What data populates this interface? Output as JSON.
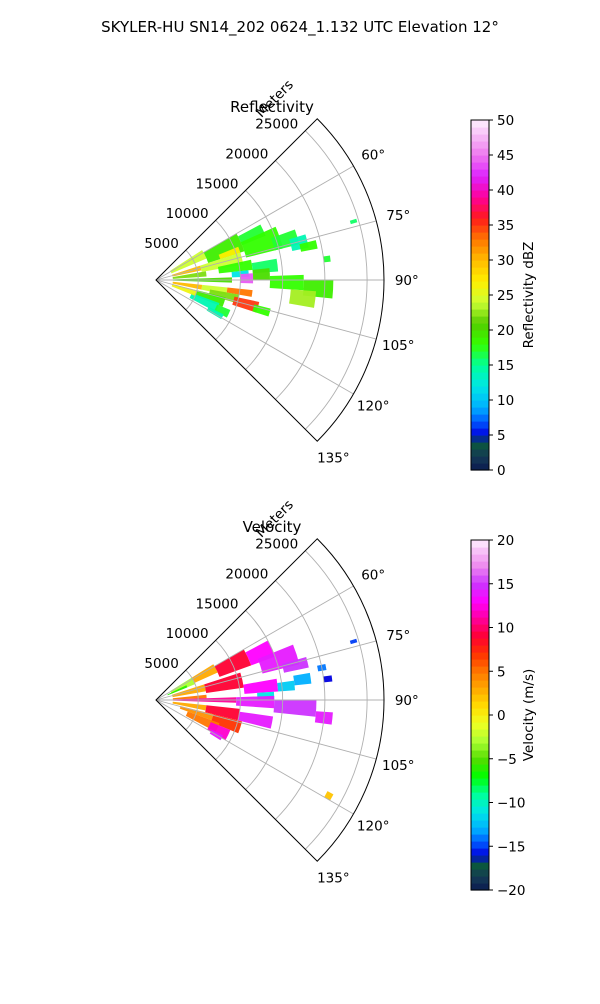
{
  "figure": {
    "suptitle": "SKYLER-HU  SN14_202  0624_1.132 UTC Elevation 12°"
  },
  "chart_data": [
    {
      "type": "heatmap",
      "subtype": "polar-sector",
      "title": "Reflectivity",
      "radial_axis_label": "Meters",
      "radial_range": [
        0,
        27000
      ],
      "radial_ticks": [
        5000,
        10000,
        15000,
        20000,
        25000
      ],
      "radial_tick_labels": [
        "5000",
        "10000",
        "15000",
        "20000",
        "25000"
      ],
      "azimuth_range_deg": [
        45,
        135
      ],
      "azimuth_ticks_deg": [
        60,
        75,
        90,
        105,
        120,
        135
      ],
      "azimuth_tick_labels": [
        "60°",
        "75°",
        "90°",
        "105°",
        "120°",
        "135°"
      ],
      "grid": true,
      "colorbar": {
        "label": "Reflectivity dBZ",
        "range": [
          0,
          50
        ],
        "ticks": [
          0,
          5,
          10,
          15,
          20,
          25,
          30,
          35,
          40,
          45,
          50
        ],
        "tick_labels": [
          "0",
          "5",
          "10",
          "15",
          "20",
          "25",
          "30",
          "35",
          "40",
          "45",
          "50"
        ],
        "color_stops": [
          [
            0,
            "#0b1a4f"
          ],
          [
            2,
            "#143a55"
          ],
          [
            4,
            "#0a5a3a"
          ],
          [
            5,
            "#0000e0"
          ],
          [
            7,
            "#005bff"
          ],
          [
            9,
            "#00b0ff"
          ],
          [
            12,
            "#00e6e6"
          ],
          [
            15,
            "#00ff99"
          ],
          [
            18,
            "#33ff00"
          ],
          [
            21,
            "#55cc00"
          ],
          [
            24,
            "#ccff33"
          ],
          [
            27,
            "#ffee00"
          ],
          [
            30,
            "#ffbb00"
          ],
          [
            33,
            "#ff7700"
          ],
          [
            36,
            "#ff1a1a"
          ],
          [
            39,
            "#ff0099"
          ],
          [
            42,
            "#dd22ff"
          ],
          [
            45,
            "#ee77ee"
          ],
          [
            48,
            "#f8c0f8"
          ],
          [
            50,
            "#fff0ff"
          ]
        ]
      },
      "cells": [
        {
          "az": [
            57,
            67
          ],
          "r": [
            2000,
            6500
          ],
          "v": 24
        },
        {
          "az": [
            60,
            72
          ],
          "r": [
            6500,
            11000
          ],
          "v": 19
        },
        {
          "az": [
            62,
            68
          ],
          "r": [
            11000,
            14000
          ],
          "v": 17
        },
        {
          "az": [
            66,
            76
          ],
          "r": [
            11000,
            15500
          ],
          "v": 18
        },
        {
          "az": [
            68,
            72
          ],
          "r": [
            8000,
            10500
          ],
          "v": 27
        },
        {
          "az": [
            70,
            76
          ],
          "r": [
            14500,
            17500
          ],
          "v": 17
        },
        {
          "az": [
            73,
            78
          ],
          "r": [
            16500,
            18500
          ],
          "v": 14
        },
        {
          "az": [
            76,
            79
          ],
          "r": [
            17500,
            19500
          ],
          "v": 18
        },
        {
          "az": [
            72,
            78
          ],
          "r": [
            2000,
            5500
          ],
          "v": 30
        },
        {
          "az": [
            72,
            80
          ],
          "r": [
            5500,
            10500
          ],
          "v": 24
        },
        {
          "az": [
            78,
            84
          ],
          "r": [
            7500,
            11500
          ],
          "v": 18
        },
        {
          "az": [
            80,
            86
          ],
          "r": [
            11500,
            14500
          ],
          "v": 16
        },
        {
          "az": [
            84,
            88
          ],
          "r": [
            9000,
            11000
          ],
          "v": 12
        },
        {
          "az": [
            86,
            92
          ],
          "r": [
            10000,
            11500
          ],
          "v": 44
        },
        {
          "az": [
            84,
            90
          ],
          "r": [
            11500,
            13500
          ],
          "v": 20
        },
        {
          "az": [
            88,
            94
          ],
          "r": [
            13500,
            17500
          ],
          "v": 18
        },
        {
          "az": [
            90,
            96
          ],
          "r": [
            17500,
            21000
          ],
          "v": 19
        },
        {
          "az": [
            94,
            100
          ],
          "r": [
            16000,
            19000
          ],
          "v": 23
        },
        {
          "az": [
            96,
            102
          ],
          "r": [
            2000,
            5500
          ],
          "v": 30
        },
        {
          "az": [
            96,
            102
          ],
          "r": [
            5500,
            8500
          ],
          "v": 24
        },
        {
          "az": [
            96,
            100
          ],
          "r": [
            8500,
            11500
          ],
          "v": 33
        },
        {
          "az": [
            100,
            106
          ],
          "r": [
            6500,
            10000
          ],
          "v": 22
        },
        {
          "az": [
            102,
            108
          ],
          "r": [
            9500,
            12500
          ],
          "v": 35
        },
        {
          "az": [
            104,
            112
          ],
          "r": [
            5000,
            8500
          ],
          "v": 19
        },
        {
          "az": [
            104,
            108
          ],
          "r": [
            12000,
            14000
          ],
          "v": 18
        },
        {
          "az": [
            110,
            118
          ],
          "r": [
            4500,
            8000
          ],
          "v": 14
        },
        {
          "az": [
            112,
            118
          ],
          "r": [
            7800,
            9500
          ],
          "v": 17
        },
        {
          "az": [
            117,
            121
          ],
          "r": [
            7000,
            9000
          ],
          "v": 14
        },
        {
          "az": [
            80,
            86
          ],
          "r": [
            2000,
            6000
          ],
          "v": 22
        },
        {
          "az": [
            104,
            112
          ],
          "r": [
            2000,
            5000
          ],
          "v": 26
        },
        {
          "az": [
            88,
            92
          ],
          "r": [
            2000,
            9000
          ],
          "v": 20
        },
        {
          "az": [
            82,
            84
          ],
          "r": [
            20000,
            20800
          ],
          "v": 17
        },
        {
          "az": [
            73,
            74
          ],
          "r": [
            24000,
            24800
          ],
          "v": 16
        }
      ]
    },
    {
      "type": "heatmap",
      "subtype": "polar-sector",
      "title": "Velocity",
      "radial_axis_label": "Meters",
      "radial_range": [
        0,
        27000
      ],
      "radial_ticks": [
        5000,
        10000,
        15000,
        20000,
        25000
      ],
      "radial_tick_labels": [
        "5000",
        "10000",
        "15000",
        "20000",
        "25000"
      ],
      "azimuth_range_deg": [
        45,
        135
      ],
      "azimuth_ticks_deg": [
        60,
        75,
        90,
        105,
        120,
        135
      ],
      "azimuth_tick_labels": [
        "60°",
        "75°",
        "90°",
        "105°",
        "120°",
        "135°"
      ],
      "grid": true,
      "colorbar": {
        "label": "Velocity (m/s)",
        "range": [
          -20,
          20
        ],
        "ticks": [
          -20,
          -15,
          -10,
          -5,
          0,
          5,
          10,
          15,
          20
        ],
        "tick_labels": [
          "−20",
          "−15",
          "−10",
          "−5",
          "0",
          "5",
          "10",
          "15",
          "20"
        ],
        "color_stops": [
          [
            -20,
            "#0b1a4f"
          ],
          [
            -18.5,
            "#143a55"
          ],
          [
            -17,
            "#0a5a3a"
          ],
          [
            -16,
            "#0000e0"
          ],
          [
            -14.5,
            "#005bff"
          ],
          [
            -13,
            "#00b0ff"
          ],
          [
            -11,
            "#00e6e6"
          ],
          [
            -9,
            "#00ff99"
          ],
          [
            -7,
            "#00ff00"
          ],
          [
            -5,
            "#55dd00"
          ],
          [
            -3,
            "#aaff33"
          ],
          [
            -1,
            "#eeff22"
          ],
          [
            1,
            "#ffdd00"
          ],
          [
            3,
            "#ffaa00"
          ],
          [
            5,
            "#ff7700"
          ],
          [
            7,
            "#ff3300"
          ],
          [
            9,
            "#ff0033"
          ],
          [
            11,
            "#ff0099"
          ],
          [
            13,
            "#ff00ff"
          ],
          [
            15,
            "#cc33ff"
          ],
          [
            17,
            "#ee88ee"
          ],
          [
            19,
            "#f8c8f8"
          ],
          [
            20,
            "#fff0ff"
          ]
        ]
      },
      "cells": [
        {
          "az": [
            58,
            68
          ],
          "r": [
            2000,
            5000
          ],
          "v": -3
        },
        {
          "az": [
            58,
            66
          ],
          "r": [
            5000,
            8000
          ],
          "v": 3
        },
        {
          "az": [
            60,
            70
          ],
          "r": [
            8000,
            12000
          ],
          "v": 9
        },
        {
          "az": [
            62,
            70
          ],
          "r": [
            12000,
            15000
          ],
          "v": 13
        },
        {
          "az": [
            68,
            76
          ],
          "r": [
            13000,
            17500
          ],
          "v": 14
        },
        {
          "az": [
            74,
            78
          ],
          "r": [
            15500,
            18500
          ],
          "v": 15
        },
        {
          "az": [
            72,
            80
          ],
          "r": [
            2000,
            6000
          ],
          "v": 3
        },
        {
          "az": [
            72,
            82
          ],
          "r": [
            6000,
            10500
          ],
          "v": 9
        },
        {
          "az": [
            80,
            86
          ],
          "r": [
            10500,
            14500
          ],
          "v": 13
        },
        {
          "az": [
            82,
            86
          ],
          "r": [
            14500,
            16500
          ],
          "v": -12
        },
        {
          "az": [
            80,
            84
          ],
          "r": [
            16500,
            18500
          ],
          "v": -13
        },
        {
          "az": [
            86,
            90
          ],
          "r": [
            12000,
            14000
          ],
          "v": -11
        },
        {
          "az": [
            84,
            88
          ],
          "r": [
            2000,
            6000
          ],
          "v": 5
        },
        {
          "az": [
            88,
            92
          ],
          "r": [
            2000,
            9500
          ],
          "v": 11
        },
        {
          "az": [
            88,
            94
          ],
          "r": [
            9500,
            14000
          ],
          "v": 14
        },
        {
          "az": [
            90,
            96
          ],
          "r": [
            14000,
            19000
          ],
          "v": 15
        },
        {
          "az": [
            94,
            98
          ],
          "r": [
            19000,
            21000
          ],
          "v": 14
        },
        {
          "az": [
            96,
            102
          ],
          "r": [
            2000,
            6000
          ],
          "v": 3
        },
        {
          "az": [
            96,
            104
          ],
          "r": [
            6000,
            10000
          ],
          "v": 9
        },
        {
          "az": [
            98,
            104
          ],
          "r": [
            10000,
            14000
          ],
          "v": 14
        },
        {
          "az": [
            104,
            110
          ],
          "r": [
            3000,
            7000
          ],
          "v": 4
        },
        {
          "az": [
            104,
            112
          ],
          "r": [
            7000,
            10500
          ],
          "v": 7
        },
        {
          "az": [
            110,
            118
          ],
          "r": [
            4000,
            8000
          ],
          "v": 5
        },
        {
          "az": [
            112,
            120
          ],
          "r": [
            7000,
            9500
          ],
          "v": 12
        },
        {
          "az": [
            118,
            122
          ],
          "r": [
            7500,
            9000
          ],
          "v": 14
        },
        {
          "az": [
            64,
            68
          ],
          "r": [
            1500,
            4000
          ],
          "v": -6
        },
        {
          "az": [
            78,
            80
          ],
          "r": [
            19500,
            20500
          ],
          "v": -14
        },
        {
          "az": [
            82,
            84
          ],
          "r": [
            20000,
            21000
          ],
          "v": -16
        },
        {
          "az": [
            73,
            74
          ],
          "r": [
            24000,
            24800
          ],
          "v": -15
        },
        {
          "az": [
            118,
            120
          ],
          "r": [
            23000,
            23800
          ],
          "v": 2
        }
      ]
    }
  ]
}
